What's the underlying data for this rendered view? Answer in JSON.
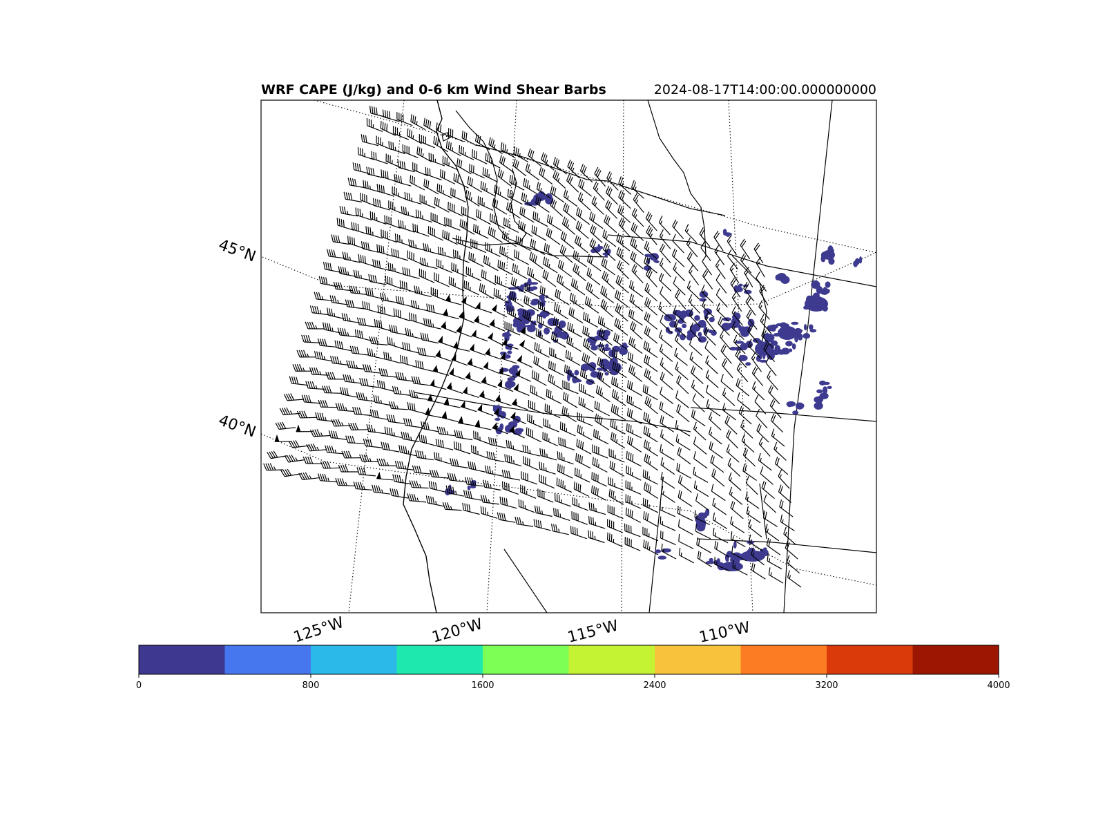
{
  "title": {
    "main": "WRF CAPE (J/kg) and 0-6 km Wind Shear Barbs",
    "time": "2024-08-17T14:00:00.000000000"
  },
  "map": {
    "lat_labels": [
      "45°N",
      "40°N"
    ],
    "lon_labels": [
      "125°W",
      "120°W",
      "115°W",
      "110°W"
    ],
    "cape_fill_color": "#3d3a8f"
  },
  "colorbar": {
    "ticks": [
      "0",
      "800",
      "1600",
      "2400",
      "3200",
      "4000"
    ],
    "min": 0,
    "max": 4000,
    "colors": [
      "#3e3891",
      "#4777ef",
      "#2ab9e8",
      "#1fe8ae",
      "#7dff55",
      "#c3f333",
      "#f8c23a",
      "#fb7c22",
      "#da3a0a",
      "#9c1601"
    ]
  },
  "chart_data": {
    "type": "heatmap",
    "variable": "CAPE",
    "units": "J/kg",
    "overlay": "0-6 km wind shear barbs",
    "color_range": [
      0,
      4000
    ],
    "color_levels": [
      0,
      400,
      800,
      1200,
      1600,
      2000,
      2400,
      2800,
      3200,
      3600,
      4000
    ],
    "lat_gridlines": [
      "45°N",
      "40°N"
    ],
    "lon_gridlines": [
      "125°W",
      "120°W",
      "115°W",
      "110°W"
    ]
  }
}
